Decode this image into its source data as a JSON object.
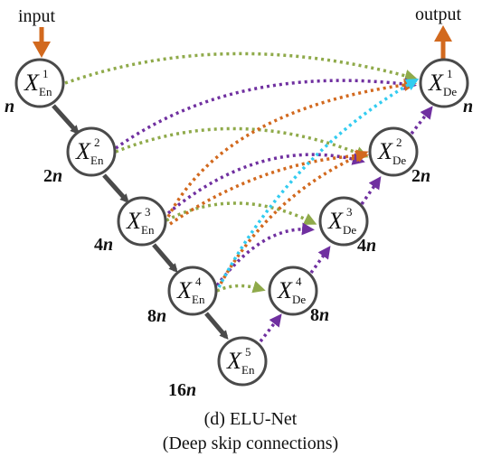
{
  "io": {
    "input": "input",
    "output": "output"
  },
  "nodes": [
    {
      "id": "en1",
      "symbol": "X",
      "sup": "1",
      "sub": "En",
      "width_num": "",
      "width_var": "n"
    },
    {
      "id": "en2",
      "symbol": "X",
      "sup": "2",
      "sub": "En",
      "width_num": "2",
      "width_var": "n"
    },
    {
      "id": "en3",
      "symbol": "X",
      "sup": "3",
      "sub": "En",
      "width_num": "4",
      "width_var": "n"
    },
    {
      "id": "en4",
      "symbol": "X",
      "sup": "4",
      "sub": "En",
      "width_num": "8",
      "width_var": "n"
    },
    {
      "id": "en5",
      "symbol": "X",
      "sup": "5",
      "sub": "En",
      "width_num": "16",
      "width_var": "n"
    },
    {
      "id": "de4",
      "symbol": "X",
      "sup": "4",
      "sub": "De",
      "width_num": "8",
      "width_var": "n"
    },
    {
      "id": "de3",
      "symbol": "X",
      "sup": "3",
      "sub": "De",
      "width_num": "4",
      "width_var": "n"
    },
    {
      "id": "de2",
      "symbol": "X",
      "sup": "2",
      "sub": "De",
      "width_num": "2",
      "width_var": "n"
    },
    {
      "id": "de1",
      "symbol": "X",
      "sup": "1",
      "sub": "De",
      "width_num": "",
      "width_var": "n"
    }
  ],
  "colors": {
    "encoder_arrow": "#4a4a4a",
    "decoder_arrow": "#7030a0",
    "same_level_skip": "#8faa4a",
    "skip_to_level2": "#d2691e",
    "skip_to_level1": "#33ccf0",
    "io_arrow": "#d2691e"
  },
  "caption": {
    "line1": "(d) ELU-Net",
    "line2": "(Deep skip connections)"
  }
}
